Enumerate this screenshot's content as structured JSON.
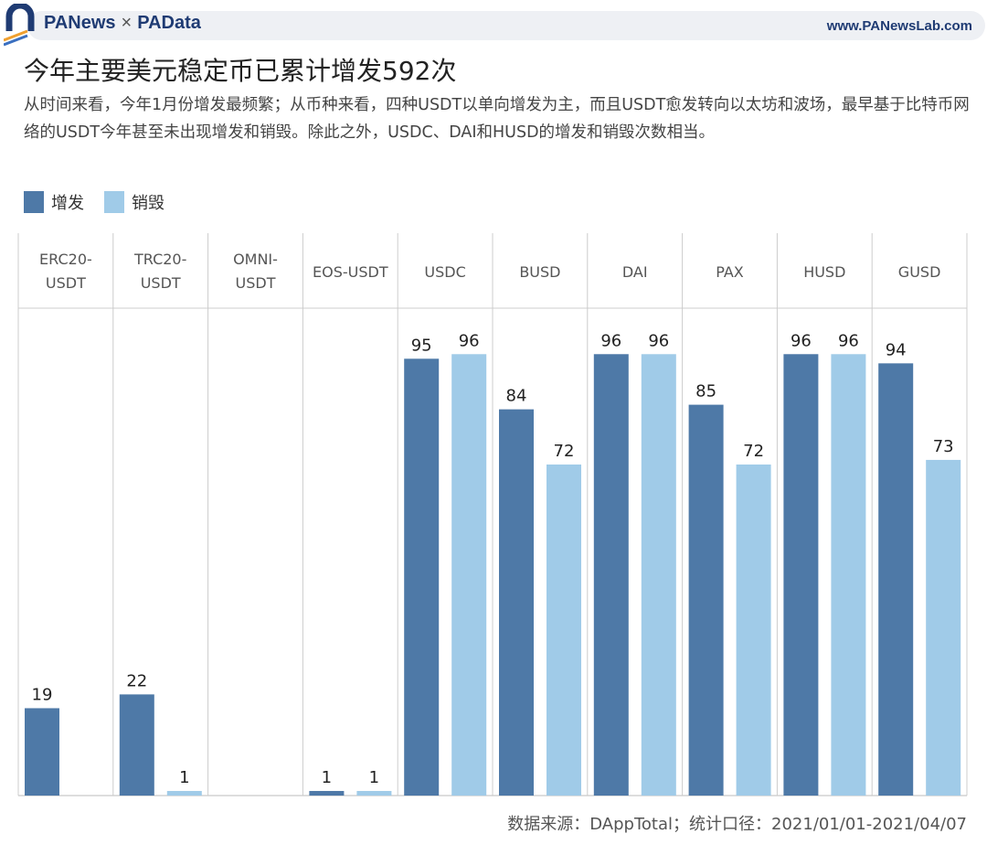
{
  "header": {
    "brand_left": "PANews",
    "brand_sep": "×",
    "brand_right": "PAData",
    "url": "www.PANewsLab.com"
  },
  "title": "今年主要美元稳定币已累计增发592次",
  "subtitle": "从时间来看，今年1月份增发最频繁；从币种来看，四种USDT以单向增发为主，而且USDT愈发转向以太坊和波场，最早基于比特币网络的USDT今年甚至未出现增发和销毁。除此之外，USDC、DAI和HUSD的增发和销毁次数相当。",
  "source": "数据来源：DAppTotal；统计口径：2021/01/01-2021/04/07",
  "colors": {
    "issue": "#4e79a7",
    "burn": "#a0cbe8"
  },
  "chart_data": {
    "type": "bar",
    "title": "今年主要美元稳定币已累计增发592次",
    "categories": [
      "ERC20-\nUSDT",
      "TRC20-\nUSDT",
      "OMNI-\nUSDT",
      "EOS-USDT",
      "USDC",
      "BUSD",
      "DAI",
      "PAX",
      "HUSD",
      "GUSD"
    ],
    "series": [
      {
        "name": "增发",
        "values": [
          19,
          22,
          null,
          1,
          95,
          84,
          96,
          85,
          96,
          94
        ]
      },
      {
        "name": "销毁",
        "values": [
          null,
          1,
          null,
          1,
          96,
          72,
          96,
          72,
          96,
          73
        ]
      }
    ],
    "ylim": [
      0,
      106
    ],
    "grid": false,
    "legend": "top-left",
    "data_labels": true
  }
}
